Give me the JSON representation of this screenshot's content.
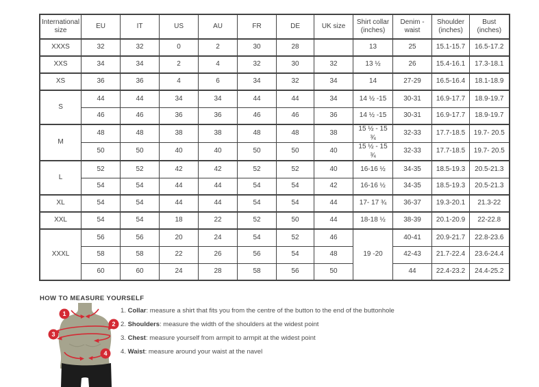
{
  "table": {
    "headers": [
      "International size",
      "EU",
      "IT",
      "US",
      "AU",
      "FR",
      "DE",
      "UK size",
      "Shirt collar (inches)",
      "Denim - waist",
      "Shoulder (inches)",
      "Bust (inches)"
    ],
    "groups": [
      {
        "size": "XXXS",
        "collar_merged": null,
        "rows": [
          [
            "32",
            "32",
            "0",
            "2",
            "30",
            "28",
            "",
            "13",
            "25",
            "15.1-15.7",
            "16.5-17.2"
          ]
        ]
      },
      {
        "size": "XXS",
        "collar_merged": null,
        "rows": [
          [
            "34",
            "34",
            "2",
            "4",
            "32",
            "30",
            "32",
            "13 ½",
            "26",
            "15.4-16.1",
            "17.3-18.1"
          ]
        ]
      },
      {
        "size": "XS",
        "collar_merged": null,
        "rows": [
          [
            "36",
            "36",
            "4",
            "6",
            "34",
            "32",
            "34",
            "14",
            "27-29",
            "16.5-16.4",
            "18.1-18.9"
          ]
        ]
      },
      {
        "size": "S",
        "collar_merged": null,
        "rows": [
          [
            "44",
            "44",
            "34",
            "34",
            "44",
            "44",
            "34",
            "14 ½ -15",
            "30-31",
            "16.9-17.7",
            "18.9-19.7"
          ],
          [
            "46",
            "46",
            "36",
            "36",
            "46",
            "46",
            "36",
            "14 ½ -15",
            "30-31",
            "16.9-17.7",
            "18.9-19.7"
          ]
        ]
      },
      {
        "size": "M",
        "collar_merged": null,
        "rows": [
          [
            "48",
            "48",
            "38",
            "38",
            "48",
            "48",
            "38",
            "15 ½ - 15 ¾",
            "32-33",
            "17.7-18.5",
            "19.7- 20.5"
          ],
          [
            "50",
            "50",
            "40",
            "40",
            "50",
            "50",
            "40",
            "15 ½ - 15 ¾",
            "32-33",
            "17.7-18.5",
            "19.7- 20.5"
          ]
        ]
      },
      {
        "size": "L",
        "collar_merged": null,
        "rows": [
          [
            "52",
            "52",
            "42",
            "42",
            "52",
            "52",
            "40",
            "16-16 ½",
            "34-35",
            "18.5-19.3",
            "20.5-21.3"
          ],
          [
            "54",
            "54",
            "44",
            "44",
            "54",
            "54",
            "42",
            "16-16 ½",
            "34-35",
            "18.5-19.3",
            "20.5-21.3"
          ]
        ]
      },
      {
        "size": "XL",
        "collar_merged": null,
        "rows": [
          [
            "54",
            "54",
            "44",
            "44",
            "54",
            "54",
            "44",
            "17- 17 ¾",
            "36-37",
            "19.3-20.1",
            "21.3-22"
          ]
        ]
      },
      {
        "size": "XXL",
        "collar_merged": null,
        "rows": [
          [
            "54",
            "54",
            "18",
            "22",
            "52",
            "50",
            "44",
            "18-18 ½",
            "38-39",
            "20.1-20.9",
            "22-22.8"
          ]
        ]
      },
      {
        "size": "XXXL",
        "collar_merged": "19 -20",
        "rows": [
          [
            "56",
            "56",
            "20",
            "24",
            "54",
            "52",
            "46",
            "40-41",
            "20.9-21.7",
            "22.8-23.6"
          ],
          [
            "58",
            "58",
            "22",
            "26",
            "56",
            "54",
            "48",
            "42-43",
            "21.7-22.4",
            "23.6-24.4"
          ],
          [
            "60",
            "60",
            "24",
            "28",
            "58",
            "56",
            "50",
            "44",
            "22.4-23.2",
            "24.4-25.2"
          ]
        ]
      }
    ]
  },
  "measure": {
    "heading": "HOW TO MEASURE YOURSELF",
    "badges": [
      "1",
      "2",
      "3",
      "4"
    ],
    "steps": [
      {
        "num": "1.",
        "label": "Collar",
        "text": ": measure a shirt that fits you from the centre of the button to the end of the buttonhole"
      },
      {
        "num": "2.",
        "label": "Shoulders",
        "text": ": measure the width of the shoulders at the widest point"
      },
      {
        "num": "3.",
        "label": "Chest",
        "text": ": measure yourself from armpit to armpit at the widest point"
      },
      {
        "num": "4.",
        "label": "Waist",
        "text": ": measure around your waist at the navel"
      }
    ]
  },
  "colors": {
    "accent_red": "#d42a34",
    "torso": "#a6a48e",
    "shorts": "#1c1c1c",
    "table_border": "#414141"
  }
}
